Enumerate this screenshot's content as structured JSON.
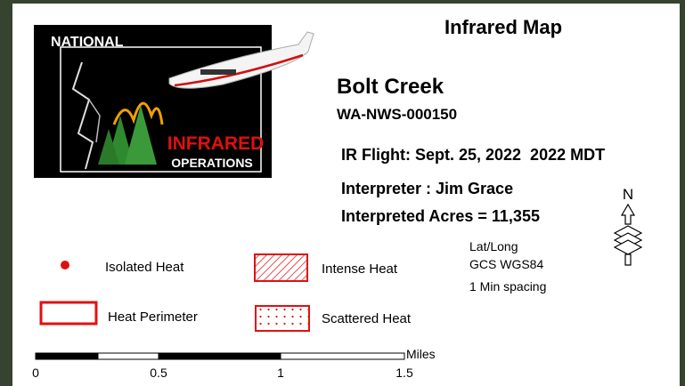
{
  "title": "Infrared Map",
  "logo": {
    "top": "NATIONAL",
    "middle": "INFRARED",
    "bottom": "OPERATIONS"
  },
  "fire": {
    "name": "Bolt Creek",
    "id": "WA-NWS-000150",
    "flight": "IR Flight: Sept. 25, 2022  2022 MDT",
    "interpreter": "Interpreter : Jim Grace",
    "acres": "Interpreted Acres = 11,355"
  },
  "north": "N",
  "legend": [
    {
      "label": "Isolated Heat"
    },
    {
      "label": "Intense Heat"
    },
    {
      "label": "Heat Perimeter"
    },
    {
      "label": "Scattered Heat"
    }
  ],
  "projection": [
    "Lat/Long",
    "GCS WGS84",
    "1 Min spacing"
  ],
  "scale": {
    "unit": "Miles",
    "labels": [
      "0",
      "0.5",
      "1",
      "1.5"
    ]
  }
}
